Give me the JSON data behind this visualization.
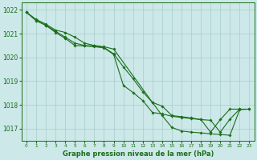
{
  "title": "Graphe pression niveau de la mer (hPa)",
  "xlim": [
    -0.5,
    23.5
  ],
  "ylim": [
    1016.5,
    1022.3
  ],
  "yticks": [
    1017,
    1018,
    1019,
    1020,
    1021,
    1022
  ],
  "xticks": [
    0,
    1,
    2,
    3,
    4,
    5,
    6,
    7,
    8,
    9,
    10,
    11,
    12,
    13,
    14,
    15,
    16,
    17,
    18,
    19,
    20,
    21,
    22,
    23
  ],
  "bg_color": "#cce8e8",
  "grid_color": "#aacccc",
  "line_color": "#1a6e1a",
  "marker": "D",
  "marker_size": 1.8,
  "line_width": 0.8,
  "series": [
    [
      1021.9,
      1021.6,
      1021.4,
      1021.15,
      1021.05,
      1020.85,
      1020.6,
      1020.5,
      1020.45,
      1020.35,
      1018.1,
      1017.55,
      1017.05,
      1016.9,
      1016.85,
      1016.82,
      1016.78,
      1016.75,
      1016.72,
      1017.8,
      1017.82
    ],
    [
      1021.9,
      1021.55,
      1021.35,
      1021.1,
      1020.85,
      1020.6,
      1020.5,
      1020.48,
      1020.42,
      1020.15,
      1019.6,
      1019.1,
      1018.55,
      1018.1,
      1017.95,
      1017.55,
      1017.5,
      1017.45,
      1017.38,
      1017.35,
      1016.85,
      1017.4,
      1017.82,
      1017.82
    ],
    [
      1021.9,
      1021.55,
      1021.35,
      1021.05,
      1020.8,
      1020.5,
      1020.48,
      1020.45,
      1020.4,
      1020.12,
      1018.82,
      1018.52,
      1018.18,
      1017.68,
      1017.62,
      1017.52,
      1017.47,
      1017.42,
      1017.38,
      1016.85,
      1017.38,
      1017.82,
      1017.82
    ]
  ],
  "series_x": [
    [
      0,
      1,
      2,
      3,
      4,
      5,
      6,
      7,
      8,
      9,
      13,
      14,
      15,
      16,
      17,
      18,
      19,
      20,
      21,
      22,
      23
    ],
    [
      0,
      1,
      2,
      3,
      4,
      5,
      6,
      7,
      8,
      9,
      10,
      11,
      12,
      13,
      14,
      15,
      16,
      17,
      18,
      19,
      20,
      21,
      22,
      23
    ],
    [
      0,
      1,
      2,
      3,
      4,
      5,
      6,
      7,
      8,
      9,
      10,
      11,
      12,
      13,
      14,
      15,
      16,
      17,
      18,
      19,
      20,
      21,
      22
    ]
  ],
  "xlabel_fontsize": 6.0,
  "ytick_fontsize": 5.5,
  "xtick_fontsize": 4.2
}
